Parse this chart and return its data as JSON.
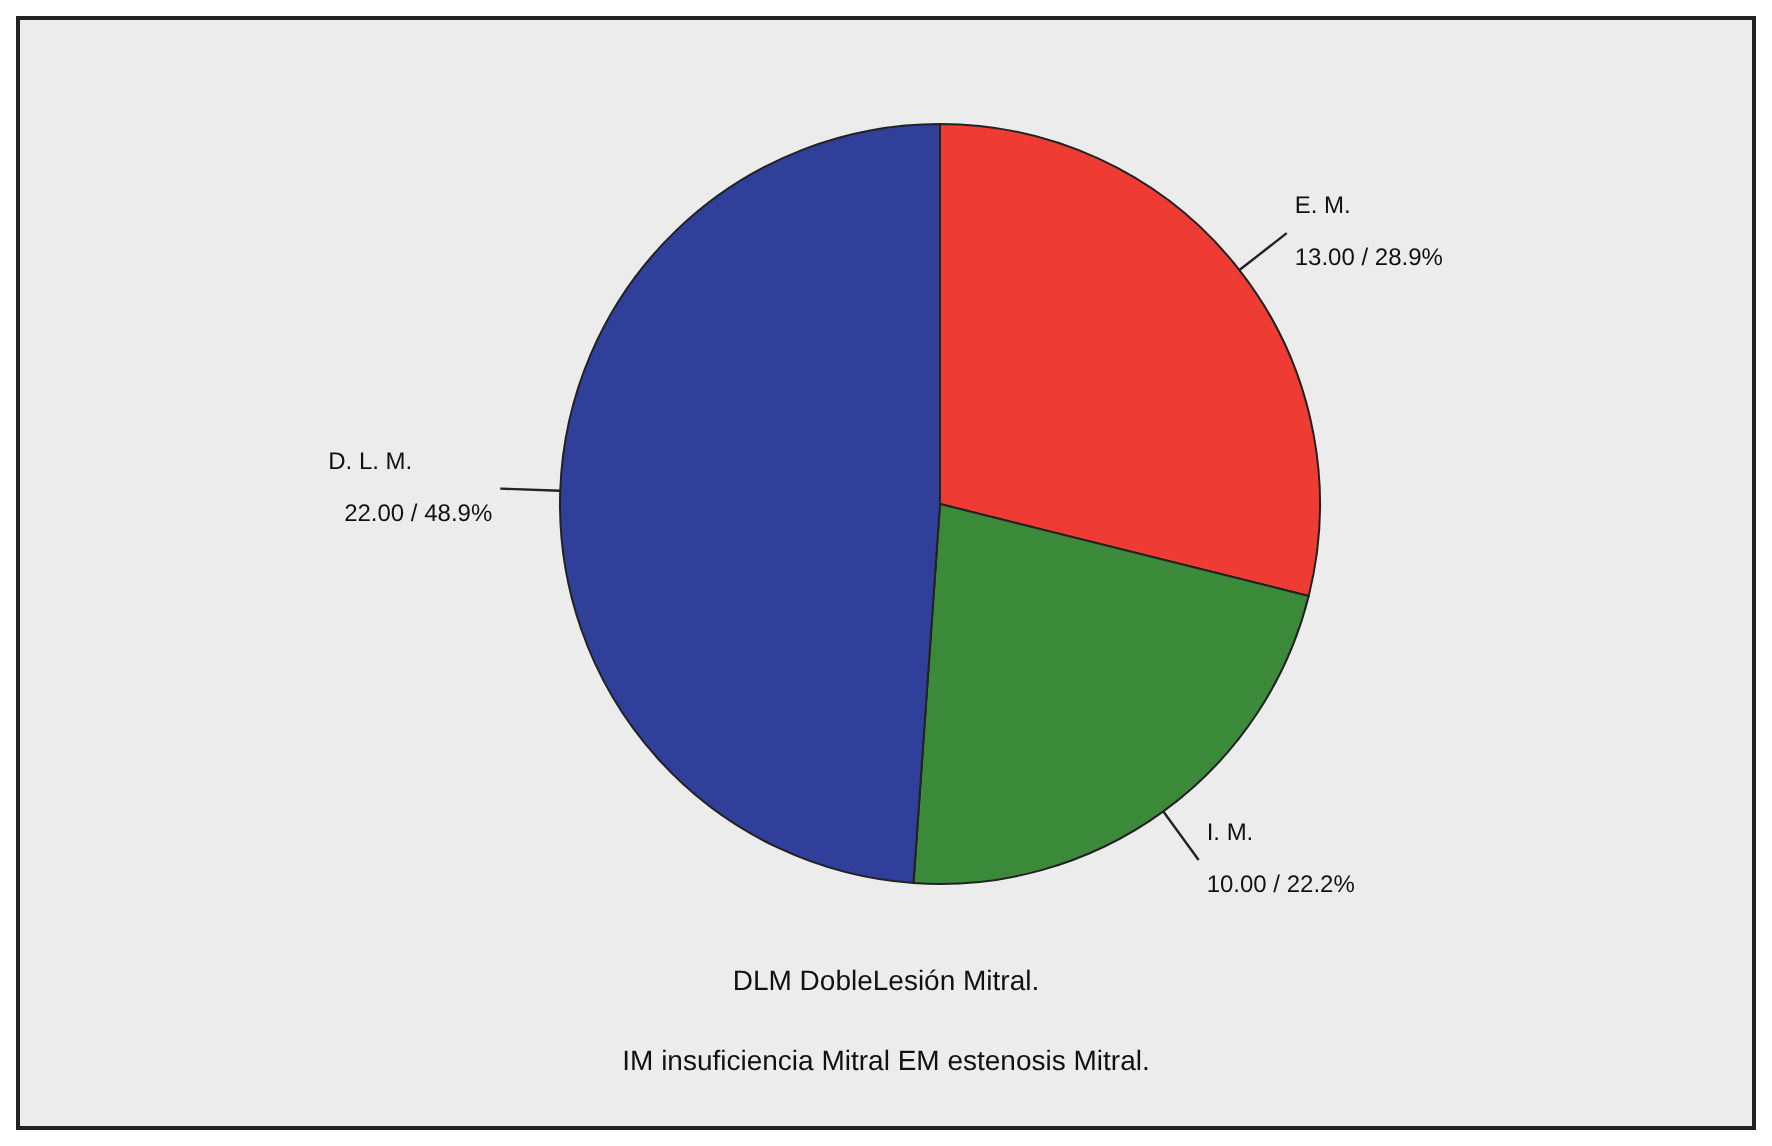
{
  "chart_data": {
    "type": "pie",
    "categories": [
      "E. M.",
      "I. M.",
      "D. L. M."
    ],
    "values": [
      13,
      10,
      22
    ],
    "colors": [
      "#ee3b33",
      "#3b8a3a",
      "#2f3f9a"
    ],
    "value_labels": [
      "13.00 / 28.9%",
      "10.00 / 22.2%",
      "22.00 / 48.9%"
    ],
    "annotations": [
      "DLM DobleLesión Mitral.",
      "IM insuficiencia Mitral EM estenosis Mitral."
    ]
  }
}
